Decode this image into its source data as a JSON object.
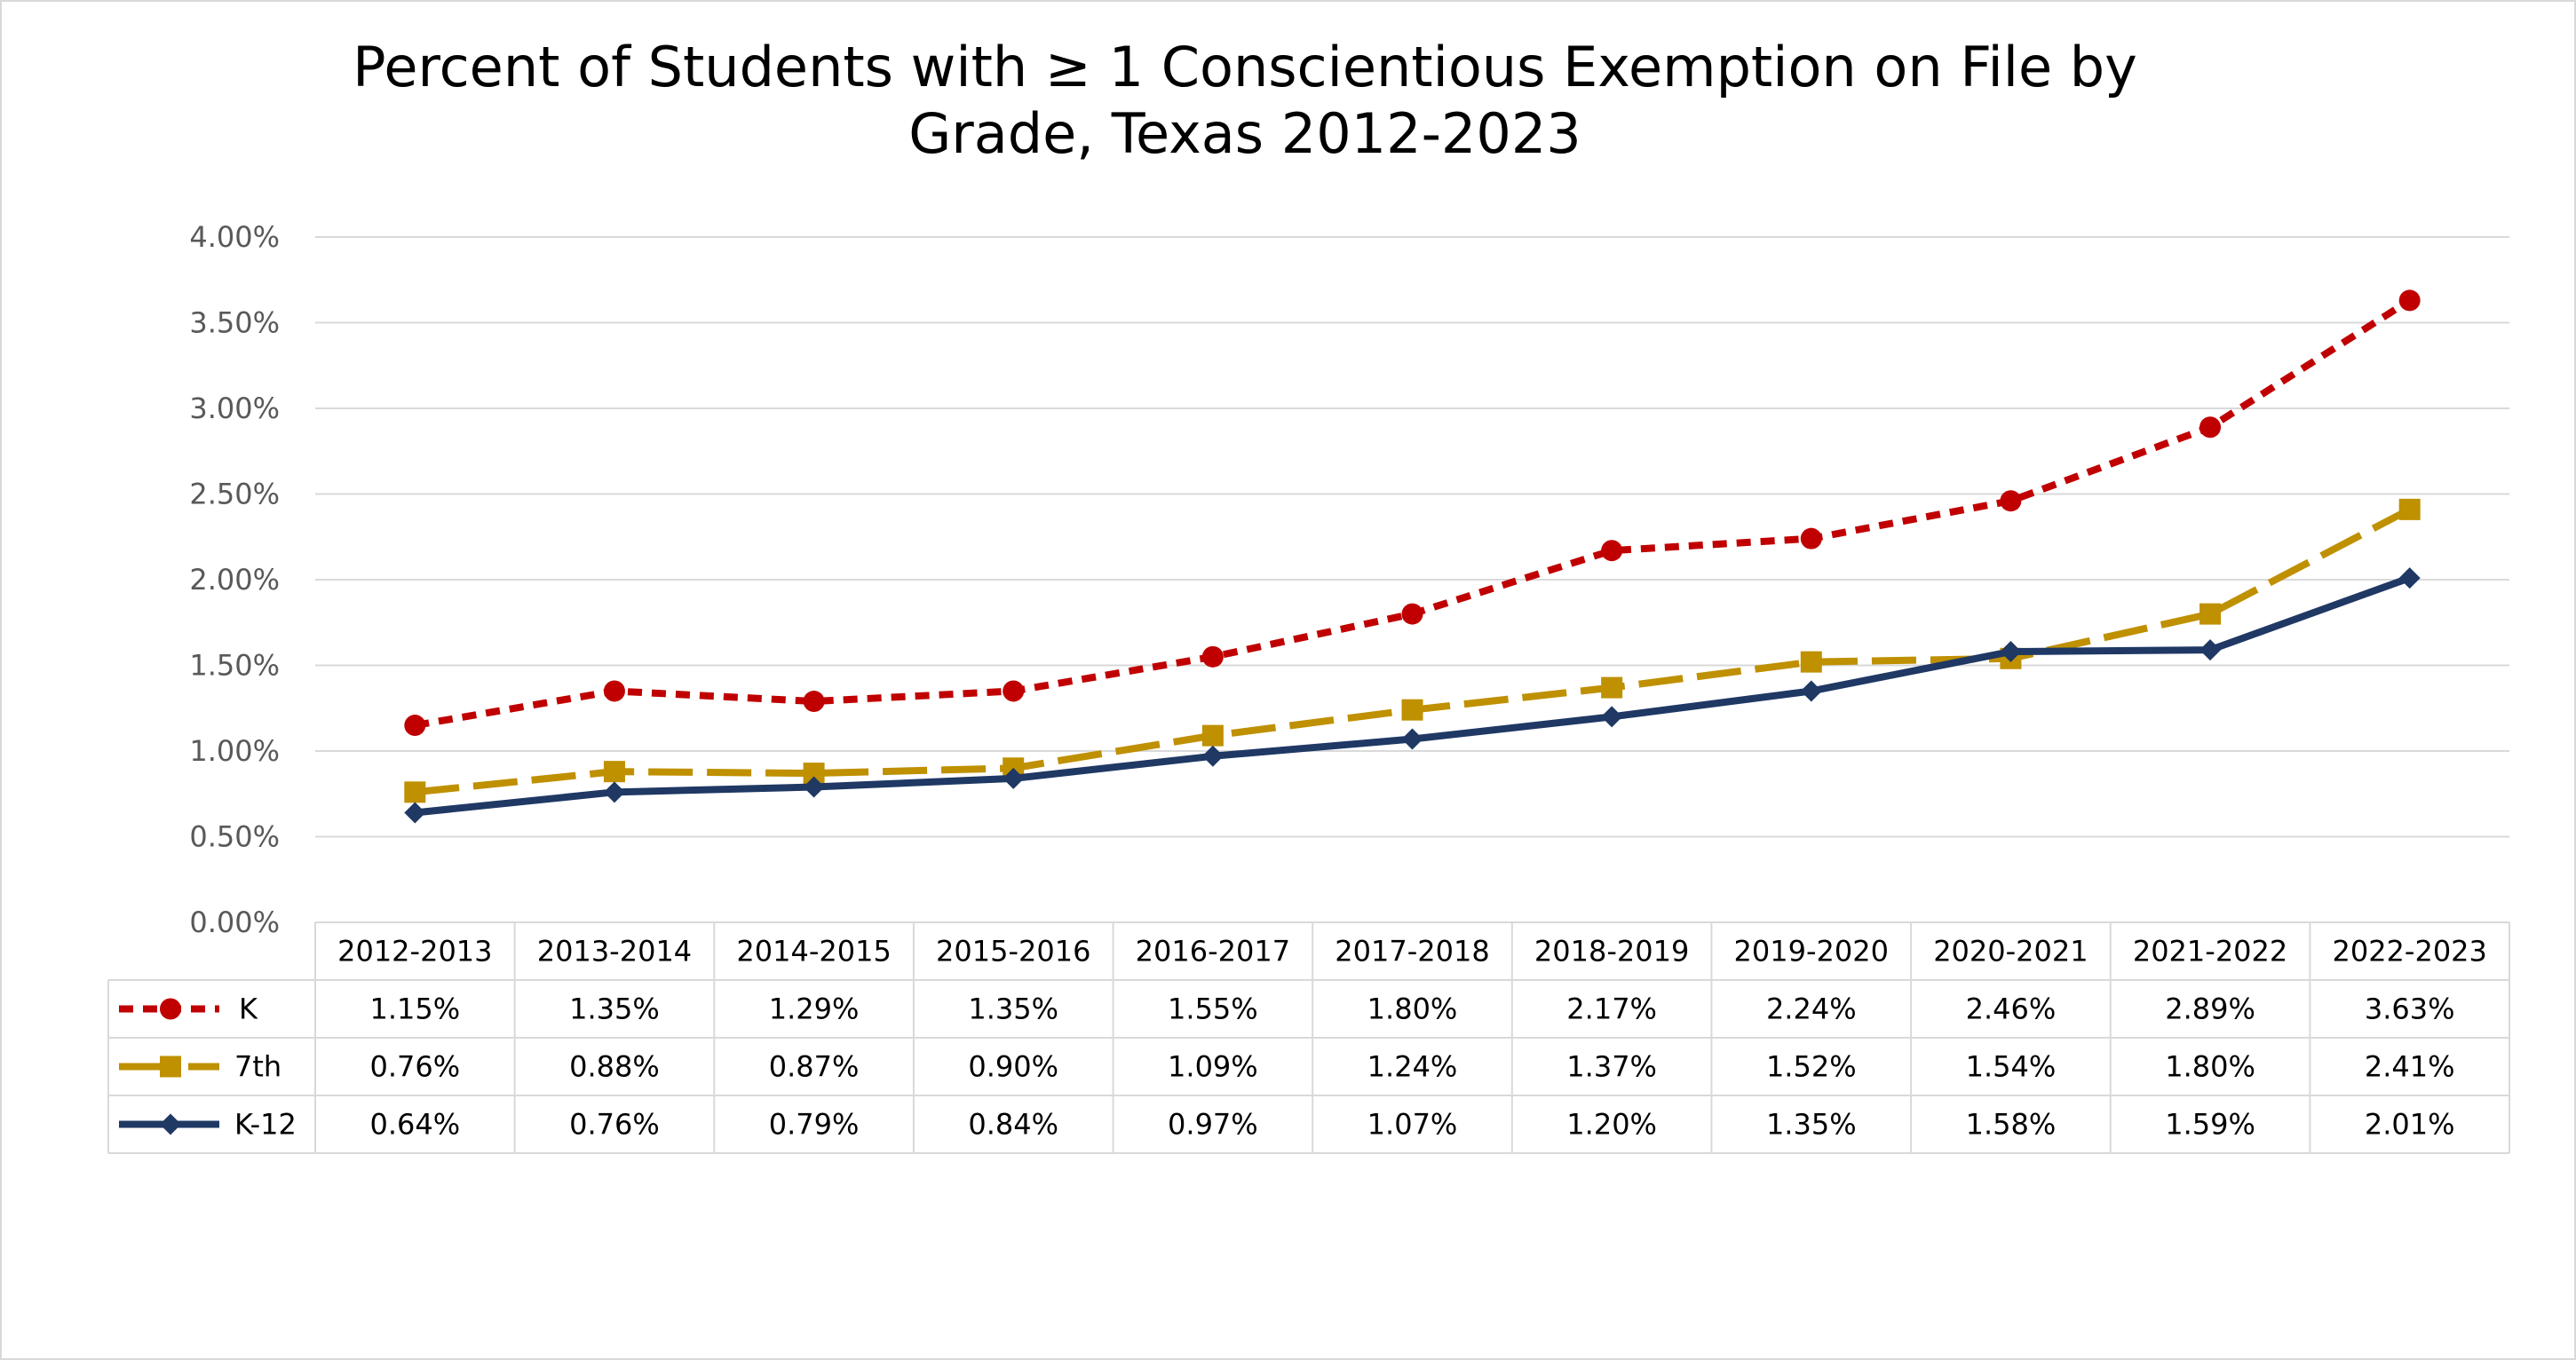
{
  "chart_data": {
    "type": "line",
    "title": "Percent of Students with ≥ 1 Conscientious Exemption on File by Grade, Texas 2012-2023",
    "title_lines": [
      "Percent of Students with ≥ 1 Conscientious Exemption on File by",
      "Grade, Texas 2012-2023"
    ],
    "categories": [
      "2012-2013",
      "2013-2014",
      "2014-2015",
      "2015-2016",
      "2016-2017",
      "2017-2018",
      "2018-2019",
      "2019-2020",
      "2020-2021",
      "2021-2022",
      "2022-2023"
    ],
    "ylim": [
      0,
      4
    ],
    "yticks": [
      0,
      0.5,
      1,
      1.5,
      2,
      2.5,
      3,
      3.5,
      4
    ],
    "ytick_labels": [
      "0.00%",
      "0.50%",
      "1.00%",
      "1.50%",
      "2.00%",
      "2.50%",
      "3.00%",
      "3.50%",
      "4.00%"
    ],
    "grid": true,
    "legend": "data-table",
    "series": [
      {
        "name": "K",
        "color": "#c00000",
        "dash": "short-dash",
        "marker": "circle",
        "values": [
          1.15,
          1.35,
          1.29,
          1.35,
          1.55,
          1.8,
          2.17,
          2.24,
          2.46,
          2.89,
          3.63
        ],
        "labels": [
          "1.15%",
          "1.35%",
          "1.29%",
          "1.35%",
          "1.55%",
          "1.80%",
          "2.17%",
          "2.24%",
          "2.46%",
          "2.89%",
          "3.63%"
        ]
      },
      {
        "name": "7th",
        "color": "#bf9000",
        "dash": "long-dash",
        "marker": "square",
        "values": [
          0.76,
          0.88,
          0.87,
          0.9,
          1.09,
          1.24,
          1.37,
          1.52,
          1.54,
          1.8,
          2.41
        ],
        "labels": [
          "0.76%",
          "0.88%",
          "0.87%",
          "0.90%",
          "1.09%",
          "1.24%",
          "1.37%",
          "1.52%",
          "1.54%",
          "1.80%",
          "2.41%"
        ]
      },
      {
        "name": "K-12",
        "color": "#1f3864",
        "dash": "solid",
        "marker": "diamond",
        "values": [
          0.64,
          0.76,
          0.79,
          0.84,
          0.97,
          1.07,
          1.2,
          1.35,
          1.58,
          1.59,
          2.01
        ],
        "labels": [
          "0.64%",
          "0.76%",
          "0.79%",
          "0.84%",
          "0.97%",
          "1.07%",
          "1.20%",
          "1.35%",
          "1.58%",
          "1.59%",
          "2.01%"
        ]
      }
    ]
  }
}
